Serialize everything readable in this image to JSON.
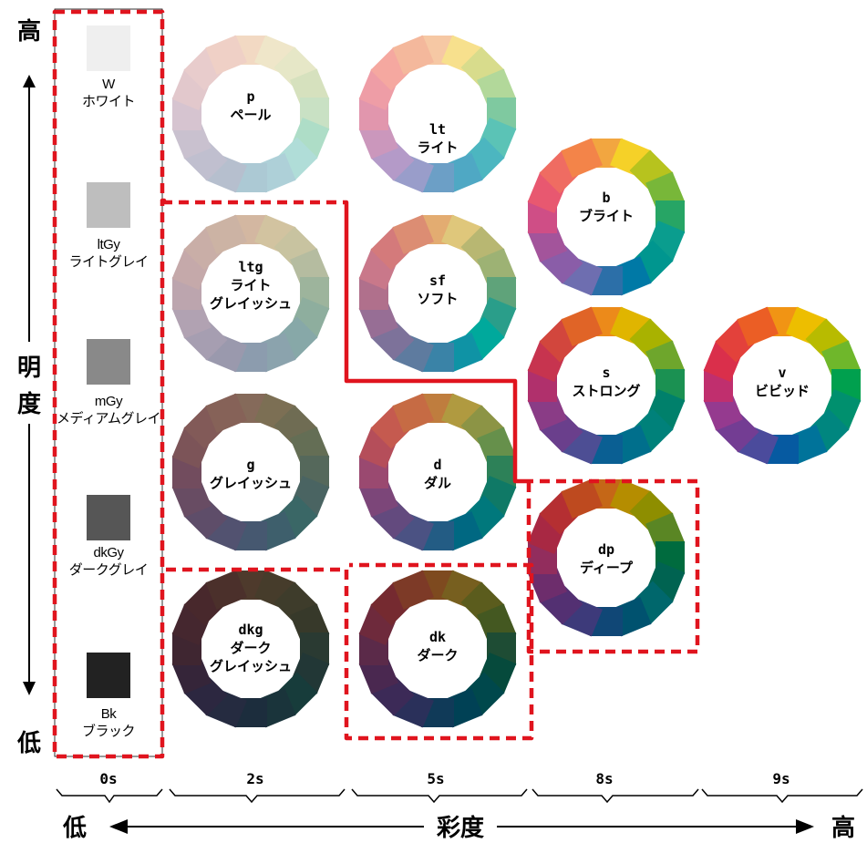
{
  "axis": {
    "lightness_high": "高",
    "lightness_low": "低",
    "lightness_title_1": "明",
    "lightness_title_2": "度",
    "chroma_low": "低",
    "chroma_high": "高",
    "chroma_title": "彩度",
    "ticks": [
      "0s",
      "2s",
      "5s",
      "8s",
      "9s"
    ]
  },
  "grays": [
    {
      "code": "W",
      "name": "ホワイト",
      "color": "#EFEFEF"
    },
    {
      "code": "ltGy",
      "name": "ライトグレイ",
      "color": "#BEBEBE"
    },
    {
      "code": "mGy",
      "name": "メディアムグレイ",
      "color": "#898989"
    },
    {
      "code": "dkGy",
      "name": "ダークグレイ",
      "color": "#565656"
    },
    {
      "code": "Bk",
      "name": "ブラック",
      "color": "#222222"
    }
  ],
  "tones": [
    {
      "code": "p",
      "name": [
        "ペール"
      ],
      "colors": [
        "#F2D9C3",
        "#EFE6C9",
        "#E6E7C7",
        "#D6E1BE",
        "#C9E1C4",
        "#AEDDC7",
        "#B0DDD8",
        "#AED0D8",
        "#ACC9D4",
        "#B6BFCE",
        "#C0BFCF",
        "#C9C1CF",
        "#D6C4D0",
        "#E2C8CC",
        "#E8CCCC",
        "#EFD0C6"
      ]
    },
    {
      "code": "lt",
      "name": [
        "ライト"
      ],
      "colors": [
        "#F6C8A4",
        "#F7E08D",
        "#D8DC8C",
        "#B2D89A",
        "#7FC9A0",
        "#5BC3B6",
        "#4CB6C0",
        "#4FA8C4",
        "#6C9FC6",
        "#999DCA",
        "#B49AC8",
        "#CB97BC",
        "#E196AD",
        "#EE9DA6",
        "#F5A8A0",
        "#F4B89C"
      ]
    },
    {
      "code": "b",
      "name": [
        "ブライト"
      ],
      "colors": [
        "#F2A640",
        "#F5D128",
        "#B7C31E",
        "#78B739",
        "#27A565",
        "#0A9D8E",
        "#00968F",
        "#0079A6",
        "#2C6FA8",
        "#6E6EB0",
        "#8A5DA8",
        "#A3549B",
        "#CF4E86",
        "#E85870",
        "#EF6C62",
        "#F38449"
      ]
    },
    {
      "code": "ltg",
      "name": [
        "ライト",
        "グレイッシュ"
      ],
      "colors": [
        "#D3B7A1",
        "#D2C3A0",
        "#C8C3A0",
        "#B5BCA0",
        "#9DB49C",
        "#8EAE9E",
        "#87A8A8",
        "#8BA3AD",
        "#8C9CAE",
        "#9A99AD",
        "#A69EB1",
        "#B1A2B2",
        "#BCA5AE",
        "#C5A9AA",
        "#C9AEA7",
        "#CCB3A4"
      ]
    },
    {
      "code": "sf",
      "name": [
        "ソフト"
      ],
      "colors": [
        "#E3AC71",
        "#DFC77B",
        "#B8B772",
        "#9DB274",
        "#5FA37A",
        "#2A9E8A",
        "#00A99C",
        "#0F93A5",
        "#3A83A7",
        "#5E7B9F",
        "#7D729A",
        "#976E95",
        "#B0708C",
        "#C9788A",
        "#D47A7B",
        "#DC8D73"
      ]
    },
    {
      "code": "s",
      "name": [
        "ストロング"
      ],
      "colors": [
        "#EC8A1A",
        "#E0B500",
        "#A9B200",
        "#6EA62C",
        "#1B9152",
        "#00806B",
        "#00817A",
        "#006F8C",
        "#0A5F93",
        "#4D4E94",
        "#6A3F8C",
        "#8A3C86",
        "#B0306C",
        "#C7344F",
        "#D2463D",
        "#E06427"
      ]
    },
    {
      "code": "v",
      "name": [
        "ビビッド"
      ],
      "colors": [
        "#F19414",
        "#EDBE00",
        "#B8BB00",
        "#6FB72B",
        "#00A04E",
        "#00906E",
        "#00867F",
        "#00739A",
        "#065AA1",
        "#4B4B9C",
        "#733D93",
        "#953A8F",
        "#C02F6E",
        "#DA2F4B",
        "#E3413B",
        "#EB5E25"
      ]
    },
    {
      "code": "g",
      "name": [
        "グレイッシュ"
      ],
      "colors": [
        "#856A5A",
        "#7C6F54",
        "#6F6C53",
        "#646E55",
        "#55685B",
        "#4A6462",
        "#3A6766",
        "#3E5F6C",
        "#465870",
        "#525270",
        "#5E4D69",
        "#684C63",
        "#724C5E",
        "#7C5458",
        "#825A58",
        "#866258"
      ]
    },
    {
      "code": "d",
      "name": [
        "ダル"
      ],
      "colors": [
        "#BF7D3E",
        "#B09A40",
        "#8C9445",
        "#66904B",
        "#2D8158",
        "#0F7966",
        "#00787C",
        "#006882",
        "#235C84",
        "#4B5283",
        "#634A7E",
        "#7C4679",
        "#9A4970",
        "#B54E5A",
        "#C55A4F",
        "#C66B44"
      ]
    },
    {
      "code": "dp",
      "name": [
        "ディープ"
      ],
      "colors": [
        "#C56717",
        "#B58D00",
        "#8E8E00",
        "#5A8624",
        "#006B3E",
        "#006351",
        "#00676C",
        "#00526F",
        "#104776",
        "#3D3A7A",
        "#533072",
        "#6D2D6C",
        "#922D5D",
        "#A82843",
        "#B52F32",
        "#BE4A1F"
      ]
    },
    {
      "code": "dkg",
      "name": [
        "ダーク",
        "グレイッシュ"
      ],
      "colors": [
        "#4E3A2C",
        "#463C2B",
        "#3E3C2B",
        "#37392A",
        "#2A3A32",
        "#223736",
        "#173C3B",
        "#1A343B",
        "#1C2D3D",
        "#252B40",
        "#2C2740",
        "#352539",
        "#3F2631",
        "#45272F",
        "#48282C",
        "#4B302B"
      ]
    },
    {
      "code": "dk",
      "name": [
        "ダーク"
      ],
      "colors": [
        "#7E4A1F",
        "#775F1F",
        "#5B5C1D",
        "#445821",
        "#1E4C34",
        "#064A3C",
        "#00484C",
        "#004155",
        "#103A58",
        "#2A305A",
        "#3C2A57",
        "#4A2850",
        "#5B2A49",
        "#6E2A3C",
        "#752A30",
        "#7D3A27"
      ]
    }
  ]
}
